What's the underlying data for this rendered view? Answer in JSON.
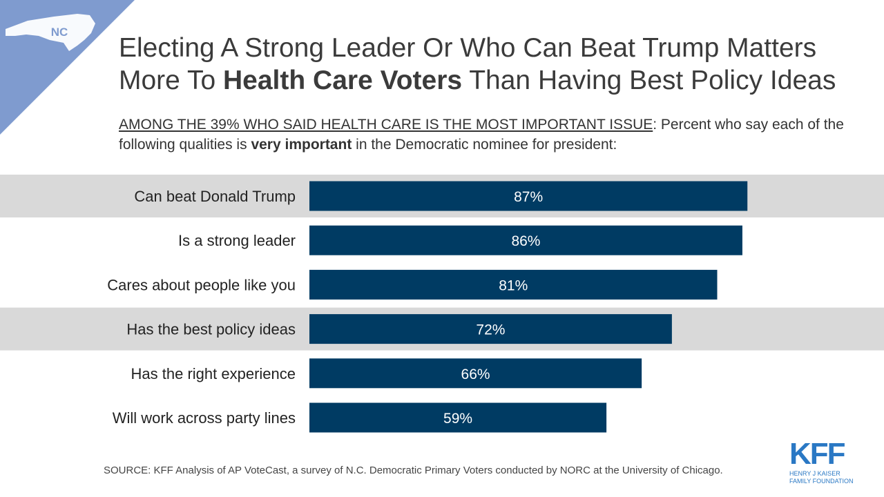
{
  "badge": {
    "state_label": "NC"
  },
  "title": {
    "part1": "Electing A Strong Leader Or Who Can Beat Trump Matters More To ",
    "bold": "Health Care Voters",
    "part2": " Than Having Best Policy Ideas"
  },
  "subtitle": {
    "underlined": "AMONG THE 39% WHO SAID HEALTH CARE IS THE MOST IMPORTANT ISSUE",
    "part1": ": Percent who say each of the following qualities is ",
    "bold": "very important",
    "part2": " in the Democratic nominee for president:"
  },
  "source": "SOURCE: KFF Analysis of AP VoteCast, a survey of N.C. Democratic Primary Voters conducted by NORC at the University of Chicago.",
  "logo": {
    "mark": "KFF",
    "line1": "HENRY J KAISER",
    "line2": "FAMILY FOUNDATION"
  },
  "colors": {
    "bar": "#003b63",
    "band": "#d9d9d9",
    "badge": "#7f9bcf",
    "logo": "#2a78c4"
  },
  "chart_data": {
    "type": "bar",
    "orientation": "horizontal",
    "categories": [
      "Can beat Donald Trump",
      "Is a strong leader",
      "Cares about people like you",
      "Has the best policy ideas",
      "Has the right experience",
      "Will work across party lines"
    ],
    "values": [
      87,
      86,
      81,
      72,
      66,
      59
    ],
    "data_labels": [
      "87%",
      "86%",
      "81%",
      "72%",
      "66%",
      "59%"
    ],
    "highlighted": [
      "Can beat Donald Trump",
      "Has the best policy ideas"
    ],
    "xlim": [
      0,
      100
    ],
    "grid": false,
    "legend": "none"
  }
}
